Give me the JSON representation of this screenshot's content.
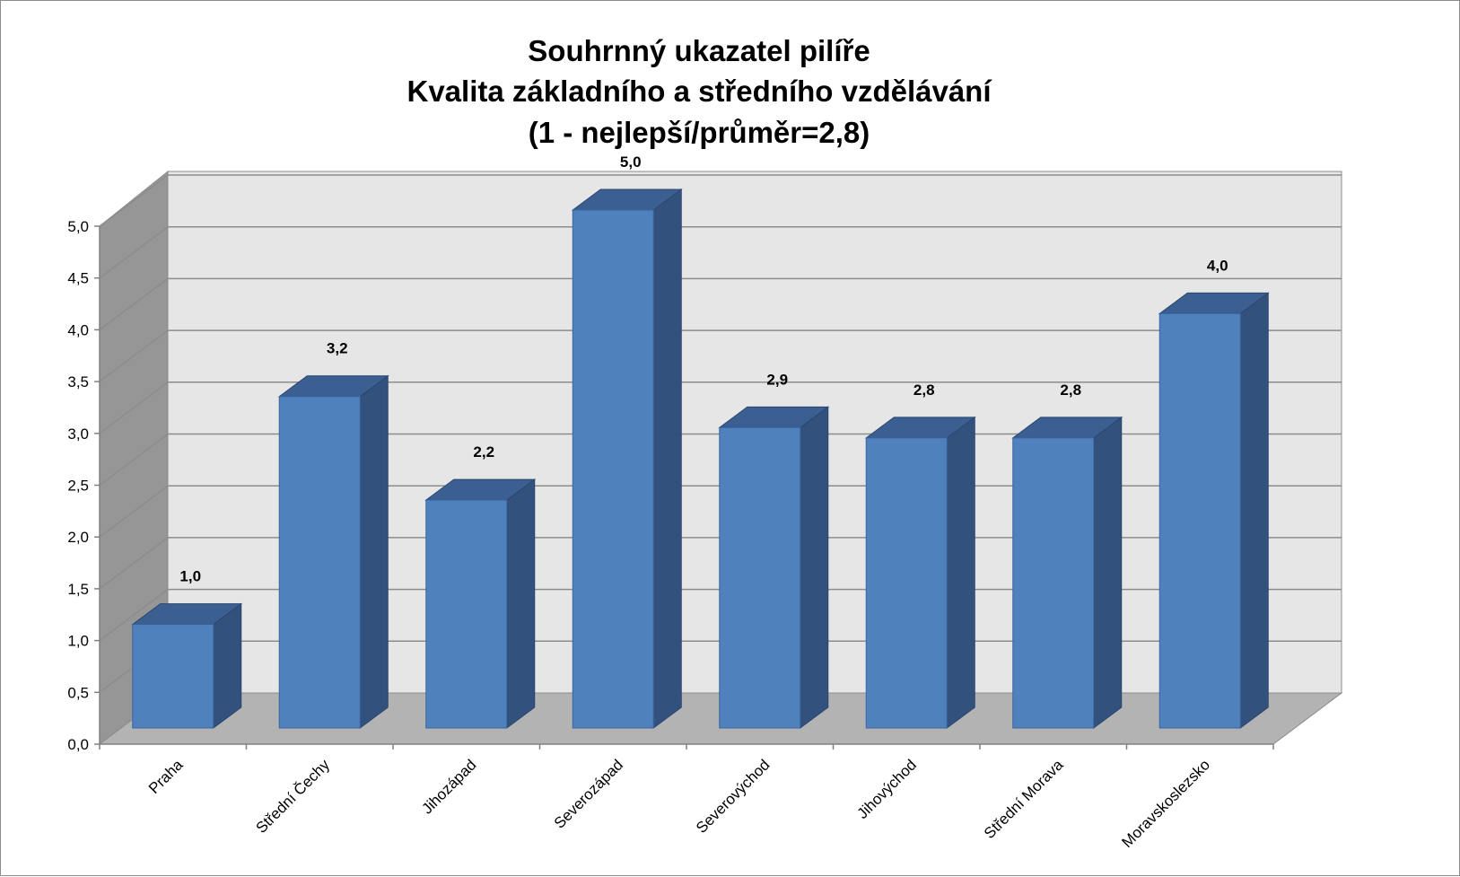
{
  "chart_data": {
    "type": "bar",
    "title_lines": [
      "Souhrnný ukazatel pilíře",
      "Kvalita základního a středního vzdělávání",
      "(1 - nejlepší/průměr=2,8)"
    ],
    "categories": [
      "Praha",
      "Střední Čechy",
      "Jihozápad",
      "Severozápad",
      "Severovýchod",
      "Jihovýchod",
      "Střední Morava",
      "Moravskoslezsko"
    ],
    "values": [
      1.0,
      3.2,
      2.2,
      5.0,
      2.9,
      2.8,
      2.8,
      4.0
    ],
    "value_labels": [
      "1,0",
      "3,2",
      "2,2",
      "5,0",
      "2,9",
      "2,8",
      "2,8",
      "4,0"
    ],
    "y_ticks": [
      "0,0",
      "0,5",
      "1,0",
      "1,5",
      "2,0",
      "2,5",
      "3,0",
      "3,5",
      "4,0",
      "4,5",
      "5,0"
    ],
    "ylim": [
      0,
      5
    ],
    "grid": true,
    "style": "3d-column",
    "colors": {
      "bar_front": "#4f81bd",
      "bar_side": "#32527d",
      "bar_top": "#3b5f91",
      "back_wall": "#e6e6e6",
      "side_wall": "#969696",
      "floor": "#b3b3b3",
      "gridline": "#8c8c8c"
    }
  }
}
